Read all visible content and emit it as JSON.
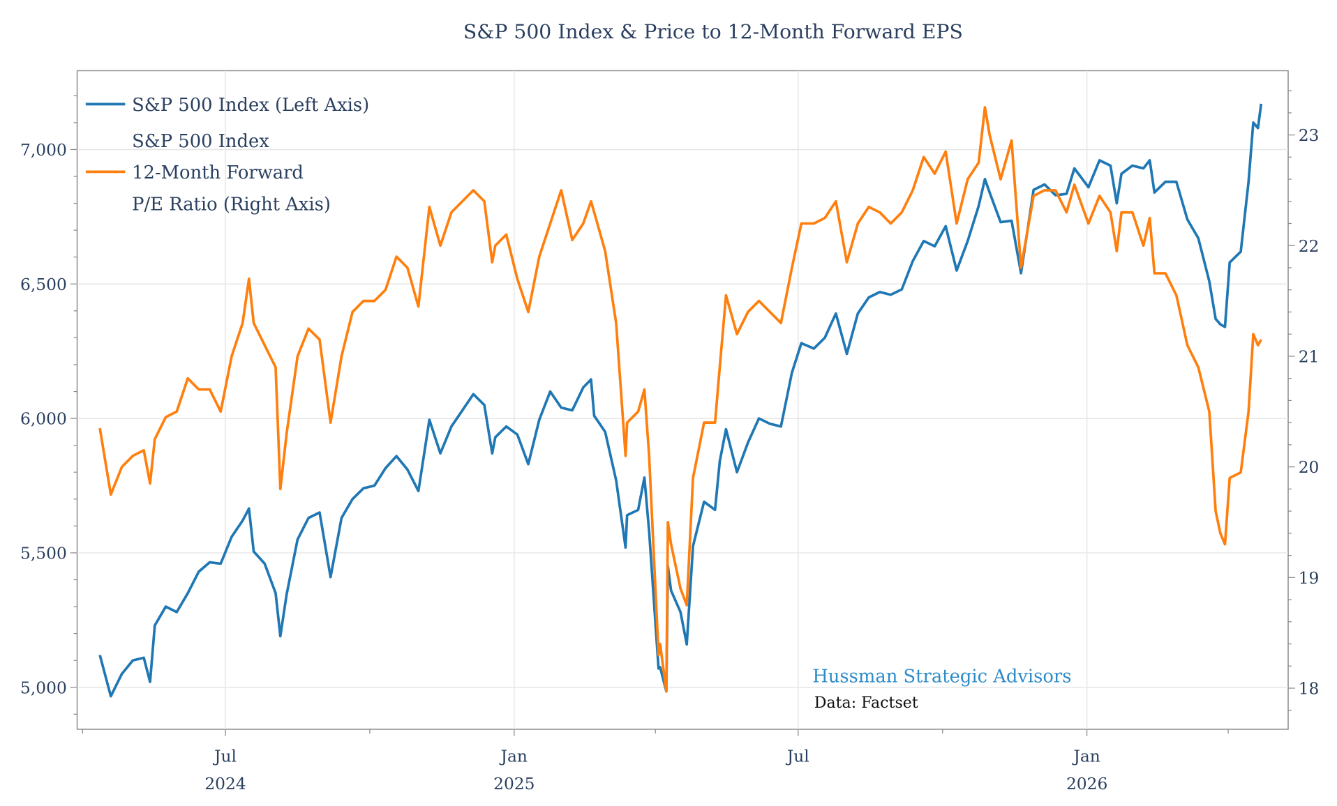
{
  "chart_data": {
    "type": "line",
    "title": "S&P 500 Index & Price to 12-Month Forward EPS",
    "legend_placement": "top-left",
    "grid": true,
    "x_axis": {
      "type": "date",
      "range": [
        "2024-04-05",
        "2026-05-05"
      ],
      "tick_labels": [
        {
          "date": "2024-07-01",
          "month": "Jul",
          "year": "2024"
        },
        {
          "date": "2025-01-01",
          "month": "Jan",
          "year": "2025"
        },
        {
          "date": "2025-07-01",
          "month": "Jul",
          "year": ""
        },
        {
          "date": "2026-01-01",
          "month": "Jan",
          "year": "2026"
        }
      ],
      "minor_ticks": [
        "2024-04-01",
        "2024-10-01",
        "2025-04-01",
        "2025-10-01",
        "2026-04-01",
        "2026-07-01"
      ]
    },
    "y_left": {
      "range": [
        4850,
        7300
      ],
      "ticks": [
        5000,
        5500,
        6000,
        6500,
        7000
      ],
      "tick_labels": [
        "5,000",
        "5,500",
        "6,000",
        "6,500",
        "7,000"
      ]
    },
    "y_right": {
      "range": [
        17.65,
        23.6
      ],
      "ticks": [
        18,
        19,
        20,
        21,
        22,
        23
      ],
      "tick_labels": [
        "18",
        "19",
        "20",
        "21",
        "22",
        "23"
      ]
    },
    "legend": [
      {
        "lines": [
          "S&P 500 Index (Left Axis)"
        ],
        "color": "#1f77b4"
      },
      {
        "lines": [
          "S&P 500 Index",
          "12-Month Forward",
          "P/E Ratio (Right Axis)"
        ],
        "color": "#ff7f0e"
      }
    ],
    "series": [
      {
        "name": "S&P 500 Index (Left Axis)",
        "axis": "left",
        "color": "#1f77b4",
        "x": [
          "2024-04-12",
          "2024-04-19",
          "2024-04-26",
          "2024-05-03",
          "2024-05-10",
          "2024-05-14",
          "2024-05-17",
          "2024-05-24",
          "2024-05-31",
          "2024-06-07",
          "2024-06-14",
          "2024-06-21",
          "2024-06-28",
          "2024-07-05",
          "2024-07-12",
          "2024-07-16",
          "2024-07-19",
          "2024-07-26",
          "2024-08-02",
          "2024-08-05",
          "2024-08-09",
          "2024-08-16",
          "2024-08-23",
          "2024-08-30",
          "2024-09-06",
          "2024-09-13",
          "2024-09-20",
          "2024-09-27",
          "2024-10-04",
          "2024-10-11",
          "2024-10-18",
          "2024-10-25",
          "2024-11-01",
          "2024-11-08",
          "2024-11-15",
          "2024-11-22",
          "2024-11-29",
          "2024-12-06",
          "2024-12-13",
          "2024-12-18",
          "2024-12-20",
          "2024-12-27",
          "2025-01-03",
          "2025-01-10",
          "2025-01-17",
          "2025-01-24",
          "2025-01-31",
          "2025-02-07",
          "2025-02-14",
          "2025-02-19",
          "2025-02-21",
          "2025-02-28",
          "2025-03-07",
          "2025-03-13",
          "2025-03-14",
          "2025-03-21",
          "2025-03-25",
          "2025-03-28",
          "2025-04-03",
          "2025-04-04",
          "2025-04-08",
          "2025-04-09",
          "2025-04-11",
          "2025-04-17",
          "2025-04-21",
          "2025-04-25",
          "2025-05-02",
          "2025-05-09",
          "2025-05-12",
          "2025-05-16",
          "2025-05-23",
          "2025-05-30",
          "2025-06-06",
          "2025-06-13",
          "2025-06-20",
          "2025-06-27",
          "2025-07-03",
          "2025-07-11",
          "2025-07-18",
          "2025-07-25",
          "2025-08-01",
          "2025-08-08",
          "2025-08-15",
          "2025-08-22",
          "2025-08-29",
          "2025-09-05",
          "2025-09-12",
          "2025-09-19",
          "2025-09-26",
          "2025-10-03",
          "2025-10-10",
          "2025-10-17",
          "2025-10-24",
          "2025-10-28",
          "2025-10-31",
          "2025-11-07",
          "2025-11-14",
          "2025-11-20",
          "2025-11-28",
          "2025-12-05",
          "2025-12-12",
          "2025-12-19",
          "2025-12-24",
          "2026-01-02",
          "2026-01-09",
          "2026-01-16",
          "2026-01-20",
          "2026-01-23",
          "2026-01-30",
          "2026-02-06",
          "2026-02-10",
          "2026-02-13",
          "2026-02-20",
          "2026-02-27",
          "2026-03-06",
          "2026-03-13",
          "2026-03-20",
          "2026-03-24",
          "2026-03-27",
          "2026-03-30",
          "2026-04-02",
          "2026-04-09",
          "2026-04-14",
          "2026-04-17",
          "2026-04-20",
          "2026-04-22"
        ],
        "y": [
          5120,
          4967,
          5050,
          5100,
          5110,
          5020,
          5230,
          5300,
          5280,
          5350,
          5430,
          5465,
          5460,
          5560,
          5620,
          5665,
          5505,
          5460,
          5350,
          5190,
          5345,
          5550,
          5630,
          5650,
          5410,
          5630,
          5700,
          5740,
          5750,
          5815,
          5860,
          5810,
          5730,
          5995,
          5870,
          5970,
          6030,
          6090,
          6050,
          5870,
          5930,
          5970,
          5940,
          5830,
          5995,
          6100,
          6040,
          6030,
          6115,
          6145,
          6010,
          5950,
          5770,
          5520,
          5640,
          5660,
          5780,
          5580,
          5070,
          5075,
          4985,
          5450,
          5360,
          5280,
          5160,
          5525,
          5690,
          5660,
          5840,
          5960,
          5800,
          5910,
          6000,
          5980,
          5970,
          6170,
          6280,
          6260,
          6300,
          6390,
          6240,
          6390,
          6450,
          6470,
          6460,
          6480,
          6585,
          6660,
          6640,
          6715,
          6550,
          6660,
          6790,
          6890,
          6840,
          6730,
          6735,
          6540,
          6850,
          6870,
          6830,
          6835,
          6930,
          6860,
          6960,
          6940,
          6800,
          6910,
          6940,
          6930,
          6960,
          6840,
          6880,
          6880,
          6740,
          6670,
          6510,
          6370,
          6350,
          6340,
          6580,
          6620,
          6880,
          7100,
          7080,
          7170
        ]
      },
      {
        "name": "S&P 500 Index 12-Month Forward P/E Ratio (Right Axis)",
        "axis": "right",
        "color": "#ff7f0e",
        "x": [
          "2024-04-12",
          "2024-04-19",
          "2024-04-26",
          "2024-05-03",
          "2024-05-10",
          "2024-05-14",
          "2024-05-17",
          "2024-05-24",
          "2024-05-31",
          "2024-06-07",
          "2024-06-14",
          "2024-06-21",
          "2024-06-28",
          "2024-07-05",
          "2024-07-12",
          "2024-07-16",
          "2024-07-19",
          "2024-07-26",
          "2024-08-02",
          "2024-08-05",
          "2024-08-09",
          "2024-08-16",
          "2024-08-23",
          "2024-08-30",
          "2024-09-06",
          "2024-09-13",
          "2024-09-20",
          "2024-09-27",
          "2024-10-04",
          "2024-10-11",
          "2024-10-18",
          "2024-10-25",
          "2024-11-01",
          "2024-11-08",
          "2024-11-15",
          "2024-11-22",
          "2024-11-29",
          "2024-12-06",
          "2024-12-13",
          "2024-12-18",
          "2024-12-20",
          "2024-12-27",
          "2025-01-03",
          "2025-01-10",
          "2025-01-17",
          "2025-01-24",
          "2025-01-31",
          "2025-02-07",
          "2025-02-14",
          "2025-02-19",
          "2025-02-21",
          "2025-02-28",
          "2025-03-07",
          "2025-03-13",
          "2025-03-14",
          "2025-03-21",
          "2025-03-25",
          "2025-03-28",
          "2025-04-03",
          "2025-04-04",
          "2025-04-08",
          "2025-04-09",
          "2025-04-11",
          "2025-04-17",
          "2025-04-21",
          "2025-04-25",
          "2025-05-02",
          "2025-05-09",
          "2025-05-12",
          "2025-05-16",
          "2025-05-23",
          "2025-05-30",
          "2025-06-06",
          "2025-06-13",
          "2025-06-20",
          "2025-06-27",
          "2025-07-03",
          "2025-07-11",
          "2025-07-18",
          "2025-07-25",
          "2025-08-01",
          "2025-08-08",
          "2025-08-15",
          "2025-08-22",
          "2025-08-29",
          "2025-09-05",
          "2025-09-12",
          "2025-09-19",
          "2025-09-26",
          "2025-10-03",
          "2025-10-10",
          "2025-10-17",
          "2025-10-24",
          "2025-10-28",
          "2025-10-31",
          "2025-11-07",
          "2025-11-14",
          "2025-11-20",
          "2025-11-28",
          "2025-12-05",
          "2025-12-12",
          "2025-12-19",
          "2025-12-24",
          "2026-01-02",
          "2026-01-09",
          "2026-01-16",
          "2026-01-20",
          "2026-01-23",
          "2026-01-30",
          "2026-02-06",
          "2026-02-10",
          "2026-02-13",
          "2026-02-20",
          "2026-02-27",
          "2026-03-06",
          "2026-03-13",
          "2026-03-20",
          "2026-03-24",
          "2026-03-27",
          "2026-03-30",
          "2026-04-02",
          "2026-04-09",
          "2026-04-14",
          "2026-04-17",
          "2026-04-20",
          "2026-04-22"
        ],
        "y": [
          20.35,
          19.75,
          20.0,
          20.1,
          20.15,
          19.85,
          20.25,
          20.45,
          20.5,
          20.8,
          20.7,
          20.7,
          20.5,
          21.0,
          21.3,
          21.7,
          21.3,
          21.1,
          20.9,
          19.8,
          20.3,
          21.0,
          21.25,
          21.15,
          20.4,
          21.0,
          21.4,
          21.5,
          21.5,
          21.6,
          21.9,
          21.8,
          21.45,
          22.35,
          22.0,
          22.3,
          22.4,
          22.5,
          22.4,
          21.85,
          22.0,
          22.1,
          21.7,
          21.4,
          21.9,
          22.2,
          22.5,
          22.05,
          22.2,
          22.4,
          22.3,
          21.95,
          21.3,
          20.1,
          20.4,
          20.5,
          20.7,
          20.1,
          18.3,
          18.4,
          17.97,
          19.5,
          19.3,
          18.9,
          18.75,
          19.9,
          20.4,
          20.4,
          20.9,
          21.55,
          21.2,
          21.4,
          21.5,
          21.4,
          21.3,
          21.8,
          22.2,
          22.2,
          22.25,
          22.4,
          21.85,
          22.2,
          22.35,
          22.3,
          22.2,
          22.3,
          22.5,
          22.8,
          22.65,
          22.85,
          22.2,
          22.6,
          22.75,
          23.25,
          23.0,
          22.6,
          22.95,
          21.8,
          22.45,
          22.5,
          22.5,
          22.3,
          22.55,
          22.2,
          22.45,
          22.3,
          21.95,
          22.3,
          22.3,
          22.0,
          22.25,
          21.75,
          21.75,
          21.55,
          21.1,
          20.9,
          20.5,
          19.6,
          19.4,
          19.3,
          19.9,
          19.95,
          20.5,
          21.2,
          21.1,
          21.15
        ]
      }
    ],
    "annotations": [
      {
        "text": "Hussman Strategic Advisors",
        "color": "#2e8bc9"
      },
      {
        "text": "Data: Factset",
        "color": "#111111"
      }
    ]
  }
}
